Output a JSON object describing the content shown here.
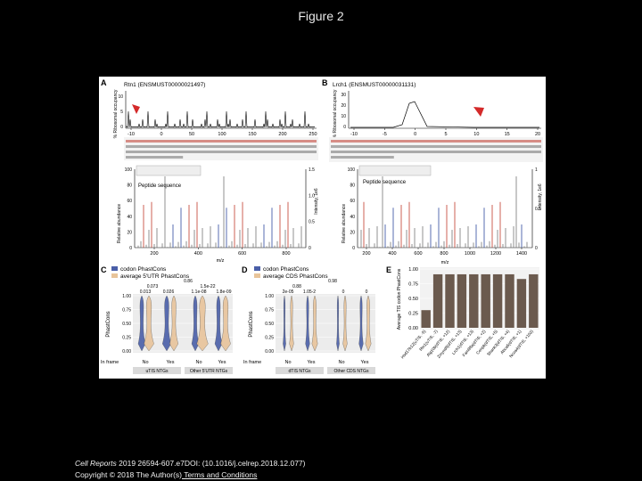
{
  "page": {
    "title": "Figure 2"
  },
  "footer": {
    "journal": "Cell Reports",
    "citation_rest": " 2019 26594-607.e7DOI: (10.1016/j.celrep.2018.12.077)",
    "copyright_text": "Copyright © 2018 The Author(s)",
    "terms_link": " Terms and Conditions"
  },
  "figure": {
    "panel_a": {
      "letter": "A",
      "gene": "Rtn1 (ENSMUST00000021497)",
      "ylabel": "% Ribosomal occupancy",
      "x_ticks": [
        "-10",
        "0",
        "50",
        "100",
        "150",
        "200",
        "250"
      ],
      "y_ticks": [
        "0",
        "5",
        "10"
      ],
      "peptide_label": "Peptide sequence",
      "spectrum_ylabel": "Relative abundance",
      "spectrum_y2label": "Intensity, 1e6",
      "spectrum_x_ticks": [
        "200",
        "400",
        "600",
        "800"
      ],
      "spectrum_xlabel": "m/z",
      "spectrum_y_ticks": [
        "0",
        "20",
        "40",
        "60",
        "80",
        "100"
      ],
      "spectrum_y2_ticks": [
        "0",
        "0.5",
        "1.0",
        "1.5"
      ]
    },
    "panel_b": {
      "letter": "B",
      "gene": "Lrch1 (ENSMUST00000031131)",
      "ylabel": "% Ribosomal occupancy",
      "x_ticks": [
        "-10",
        "-5",
        "0",
        "5",
        "10",
        "15",
        "20"
      ],
      "y_ticks": [
        "0",
        "10",
        "20",
        "30"
      ],
      "peptide_label": "Peptide sequence",
      "spectrum_ylabel": "Relative abundance",
      "spectrum_y2label": "Intensity, 1e6",
      "spectrum_x_ticks": [
        "200",
        "400",
        "600",
        "800",
        "1000",
        "1200",
        "1400"
      ],
      "spectrum_xlabel": "m/z",
      "spectrum_y_ticks": [
        "0",
        "20",
        "40",
        "60",
        "80",
        "100"
      ],
      "spectrum_y2_ticks": [
        "0",
        "0.5",
        "1"
      ]
    },
    "panel_c": {
      "letter": "C",
      "legend": [
        "codon PhastCons",
        "average 5'UTR PhastCons"
      ],
      "legend_colors": [
        "#4a5fa8",
        "#e8c49a"
      ],
      "ylabel": "PhastCons",
      "y_ticks": [
        "0.00",
        "0.25",
        "0.50",
        "0.75",
        "1.00"
      ],
      "pvalues_top": [
        "0.86"
      ],
      "pvalues_mid": [
        "0.073",
        "1.5e-22"
      ],
      "pvalues_low": [
        "0.013",
        "0.026",
        "1.1e-08",
        "1.8e-09"
      ],
      "x_categories": [
        "No",
        "Yes",
        "No",
        "Yes"
      ],
      "inframe_label": "In frame",
      "group_labels": [
        "uTIS NTGs",
        "Other 5'UTR NTGs"
      ]
    },
    "panel_d": {
      "letter": "D",
      "legend": [
        "codon PhastCons",
        "average CDS PhastCons"
      ],
      "legend_colors": [
        "#4a5fa8",
        "#e8c49a"
      ],
      "ylabel": "PhastCons",
      "y_ticks": [
        "0.00",
        "0.25",
        "0.50",
        "0.75",
        "1.00"
      ],
      "pvalues_top": [
        "0.98"
      ],
      "pvalues_mid": [
        "0.88"
      ],
      "pvalues_low": [
        "2e-05",
        "1.05-2",
        "0",
        "0"
      ],
      "x_categories": [
        "No",
        "Yes",
        "No",
        "Yes"
      ],
      "inframe_label": "In frame",
      "group_labels": [
        "dTIS NTGs",
        "Other CDS NTGs"
      ]
    },
    "panel_e": {
      "letter": "E",
      "ylabel": "Average TIS codon PhastCons",
      "y_ticks": [
        "0.00",
        "0.25",
        "0.50",
        "0.75",
        "1.00"
      ],
      "categories": [
        "Hsd17b12(uTIS, -5)",
        "Rtn1(uTIS, -7)",
        "Alg10b(dTIS, +12)",
        "Zmynd8(dTIS, +13)",
        "Lrch1(dTIS, +13)",
        "Fam98a(dTIS, +2)",
        "Cenpb(dTIS, +5)",
        "Shank3(dTIS, +4)",
        "Abca5(dTIS, +1)",
        "Ncoa4(dTIS, +102)"
      ],
      "values": [
        0.3,
        0.91,
        0.91,
        0.91,
        0.91,
        0.91,
        0.91,
        0.91,
        0.83,
        0.91
      ],
      "bar_color": "#6b5a4e"
    }
  }
}
